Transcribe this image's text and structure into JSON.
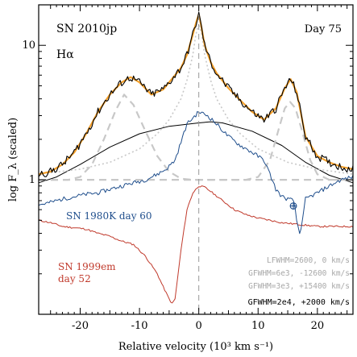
{
  "chart_data": {
    "type": "line",
    "title": "SN 2010jp",
    "subtitle": "Hα",
    "epoch_label": "Day 75",
    "xlabel": "Relative velocity (10³ km s⁻¹)",
    "ylabel": "log F_λ (scaled)",
    "xlim": [
      -27,
      26
    ],
    "ylim": [
      0.1,
      20
    ],
    "y_scale": "log",
    "x_ticks": [
      -20,
      -10,
      0,
      10,
      20
    ],
    "y_tick_labels": [
      "1",
      "10"
    ],
    "grid": false,
    "annotations": {
      "sn1980k_label": "SN 1980K day 60",
      "sn1999em_label_line1": "SN 1999em",
      "sn1999em_label_line2": "day 52",
      "fit1": "LFWHM=2600, 0 km/s",
      "fit2": "GFWHM=6e3, -12600 km/s",
      "fit3": "GFWHM=3e3, +15400 km/s",
      "fit4": "GFWHM=2e4, +2000 km/s",
      "telluric": "⊕"
    },
    "colors": {
      "observed": "#000000",
      "model_sum": "#f5a02a",
      "components": "#c8c8c8",
      "sn1980k": "#1f4e8c",
      "sn1999em": "#c0392b",
      "broad_gaussian": "#000000",
      "zero_line": "#999999",
      "fit_label": "#a8a8a8"
    },
    "series": [
      {
        "name": "SN 2010jp",
        "component": "observed",
        "x": [
          -27,
          -25,
          -23,
          -21,
          -19,
          -17,
          -15,
          -13,
          -11.5,
          -10,
          -8,
          -6,
          -4,
          -3,
          -2,
          -1,
          -0.4,
          0,
          0.4,
          1,
          2,
          3,
          5,
          7,
          9,
          11,
          13,
          14.5,
          15.5,
          16.5,
          18,
          20,
          22,
          24,
          26
        ],
        "values": [
          1.1,
          1.15,
          1.3,
          1.6,
          2.2,
          3.2,
          4.3,
          5.3,
          5.8,
          5.3,
          4.3,
          4.7,
          6.0,
          6.8,
          8.5,
          12,
          15,
          17,
          14,
          10,
          7.5,
          6.2,
          4.8,
          3.9,
          3.2,
          2.8,
          3.4,
          4.8,
          5.6,
          4.5,
          2.1,
          1.5,
          1.35,
          1.25,
          1.2
        ]
      },
      {
        "name": "",
        "component": "model_sum",
        "x": [
          -27,
          -25,
          -23,
          -21,
          -19,
          -17,
          -15,
          -13,
          -11.5,
          -10,
          -8,
          -6,
          -4,
          -3,
          -2,
          -1,
          -0.4,
          0,
          0.4,
          1,
          2,
          3,
          5,
          7,
          9,
          11,
          13,
          14.5,
          15.5,
          16.5,
          18,
          20,
          22,
          24,
          26
        ],
        "values": [
          1.1,
          1.15,
          1.3,
          1.6,
          2.2,
          3.2,
          4.3,
          5.3,
          5.8,
          5.3,
          4.3,
          4.7,
          6.0,
          6.8,
          8.5,
          12,
          15,
          17,
          14,
          10,
          7.5,
          6.2,
          4.8,
          3.9,
          3.2,
          2.8,
          3.4,
          4.8,
          5.6,
          4.5,
          2.1,
          1.5,
          1.35,
          1.25,
          1.2
        ]
      },
      {
        "name": "",
        "component": "lorentzian_0",
        "x": [
          -27,
          -20,
          -15,
          -10,
          -7,
          -5,
          -3,
          -2,
          -1,
          -0.5,
          0,
          0.5,
          1,
          2,
          3,
          5,
          7,
          10,
          15,
          20,
          26
        ],
        "values": [
          1.1,
          1.2,
          1.35,
          1.7,
          2.2,
          2.8,
          4.0,
          5.5,
          8.5,
          12,
          14.5,
          12,
          8.5,
          5.5,
          4.0,
          2.8,
          2.2,
          1.7,
          1.35,
          1.2,
          1.1
        ]
      },
      {
        "name": "",
        "component": "gaussian_-12600",
        "x": [
          -27,
          -22,
          -20,
          -18,
          -16,
          -14,
          -12.6,
          -11,
          -9,
          -7,
          -5,
          -3,
          -1,
          2,
          5,
          10,
          15,
          20,
          26
        ],
        "values": [
          1.0,
          1.0,
          1.05,
          1.3,
          2.0,
          3.3,
          4.3,
          3.6,
          2.3,
          1.5,
          1.15,
          1.02,
          1.0,
          1.0,
          1.0,
          1.0,
          1.0,
          1.0,
          1.0
        ]
      },
      {
        "name": "",
        "component": "gaussian_+15400",
        "x": [
          -27,
          0,
          8,
          10,
          12,
          13.5,
          14.5,
          15.4,
          16.3,
          17.3,
          18.8,
          20,
          22,
          26
        ],
        "values": [
          1.0,
          1.0,
          1.0,
          1.05,
          1.4,
          2.4,
          3.4,
          3.8,
          3.4,
          2.4,
          1.4,
          1.1,
          1.0,
          1.0
        ]
      },
      {
        "name": "",
        "component": "broad_gaussian",
        "x": [
          -27,
          -24,
          -20,
          -15,
          -10,
          -5,
          0,
          2,
          4,
          9,
          14,
          18,
          22,
          26
        ],
        "values": [
          0.95,
          1.05,
          1.3,
          1.75,
          2.2,
          2.5,
          2.65,
          2.7,
          2.65,
          2.3,
          1.8,
          1.35,
          1.08,
          0.95
        ]
      },
      {
        "name": "SN 1980K day 60",
        "component": "sn1980k",
        "x": [
          -27,
          -25,
          -23,
          -21,
          -19,
          -17,
          -15,
          -13,
          -11,
          -9,
          -7,
          -5.5,
          -4,
          -2,
          0,
          1.5,
          3,
          5,
          7,
          9,
          11,
          12,
          13,
          14,
          15,
          16,
          16.5,
          17,
          17.5,
          18,
          20,
          22,
          24,
          26
        ],
        "values": [
          0.65,
          0.68,
          0.72,
          0.75,
          0.78,
          0.8,
          0.85,
          0.9,
          0.95,
          1.0,
          1.1,
          1.2,
          1.4,
          2.6,
          3.2,
          3.0,
          2.6,
          2.1,
          1.8,
          1.6,
          1.4,
          1.1,
          0.85,
          0.75,
          0.72,
          0.7,
          0.5,
          0.4,
          0.5,
          0.72,
          0.8,
          0.9,
          1.0,
          1.05
        ]
      },
      {
        "name": "SN 1999em day 52",
        "component": "sn1999em",
        "x": [
          -27,
          -25,
          -23,
          -21,
          -19,
          -17,
          -15,
          -13,
          -11,
          -9,
          -7,
          -6,
          -5,
          -4.5,
          -4,
          -3,
          -2,
          -1,
          0,
          1,
          2,
          4,
          6,
          8,
          10,
          12,
          14,
          16,
          18,
          20,
          22,
          24,
          26
        ],
        "values": [
          0.5,
          0.48,
          0.45,
          0.44,
          0.43,
          0.4,
          0.38,
          0.35,
          0.33,
          0.27,
          0.2,
          0.16,
          0.13,
          0.12,
          0.13,
          0.3,
          0.6,
          0.8,
          0.9,
          0.88,
          0.82,
          0.7,
          0.6,
          0.55,
          0.52,
          0.5,
          0.48,
          0.47,
          0.46,
          0.45,
          0.45,
          0.45,
          0.45
        ]
      }
    ]
  }
}
